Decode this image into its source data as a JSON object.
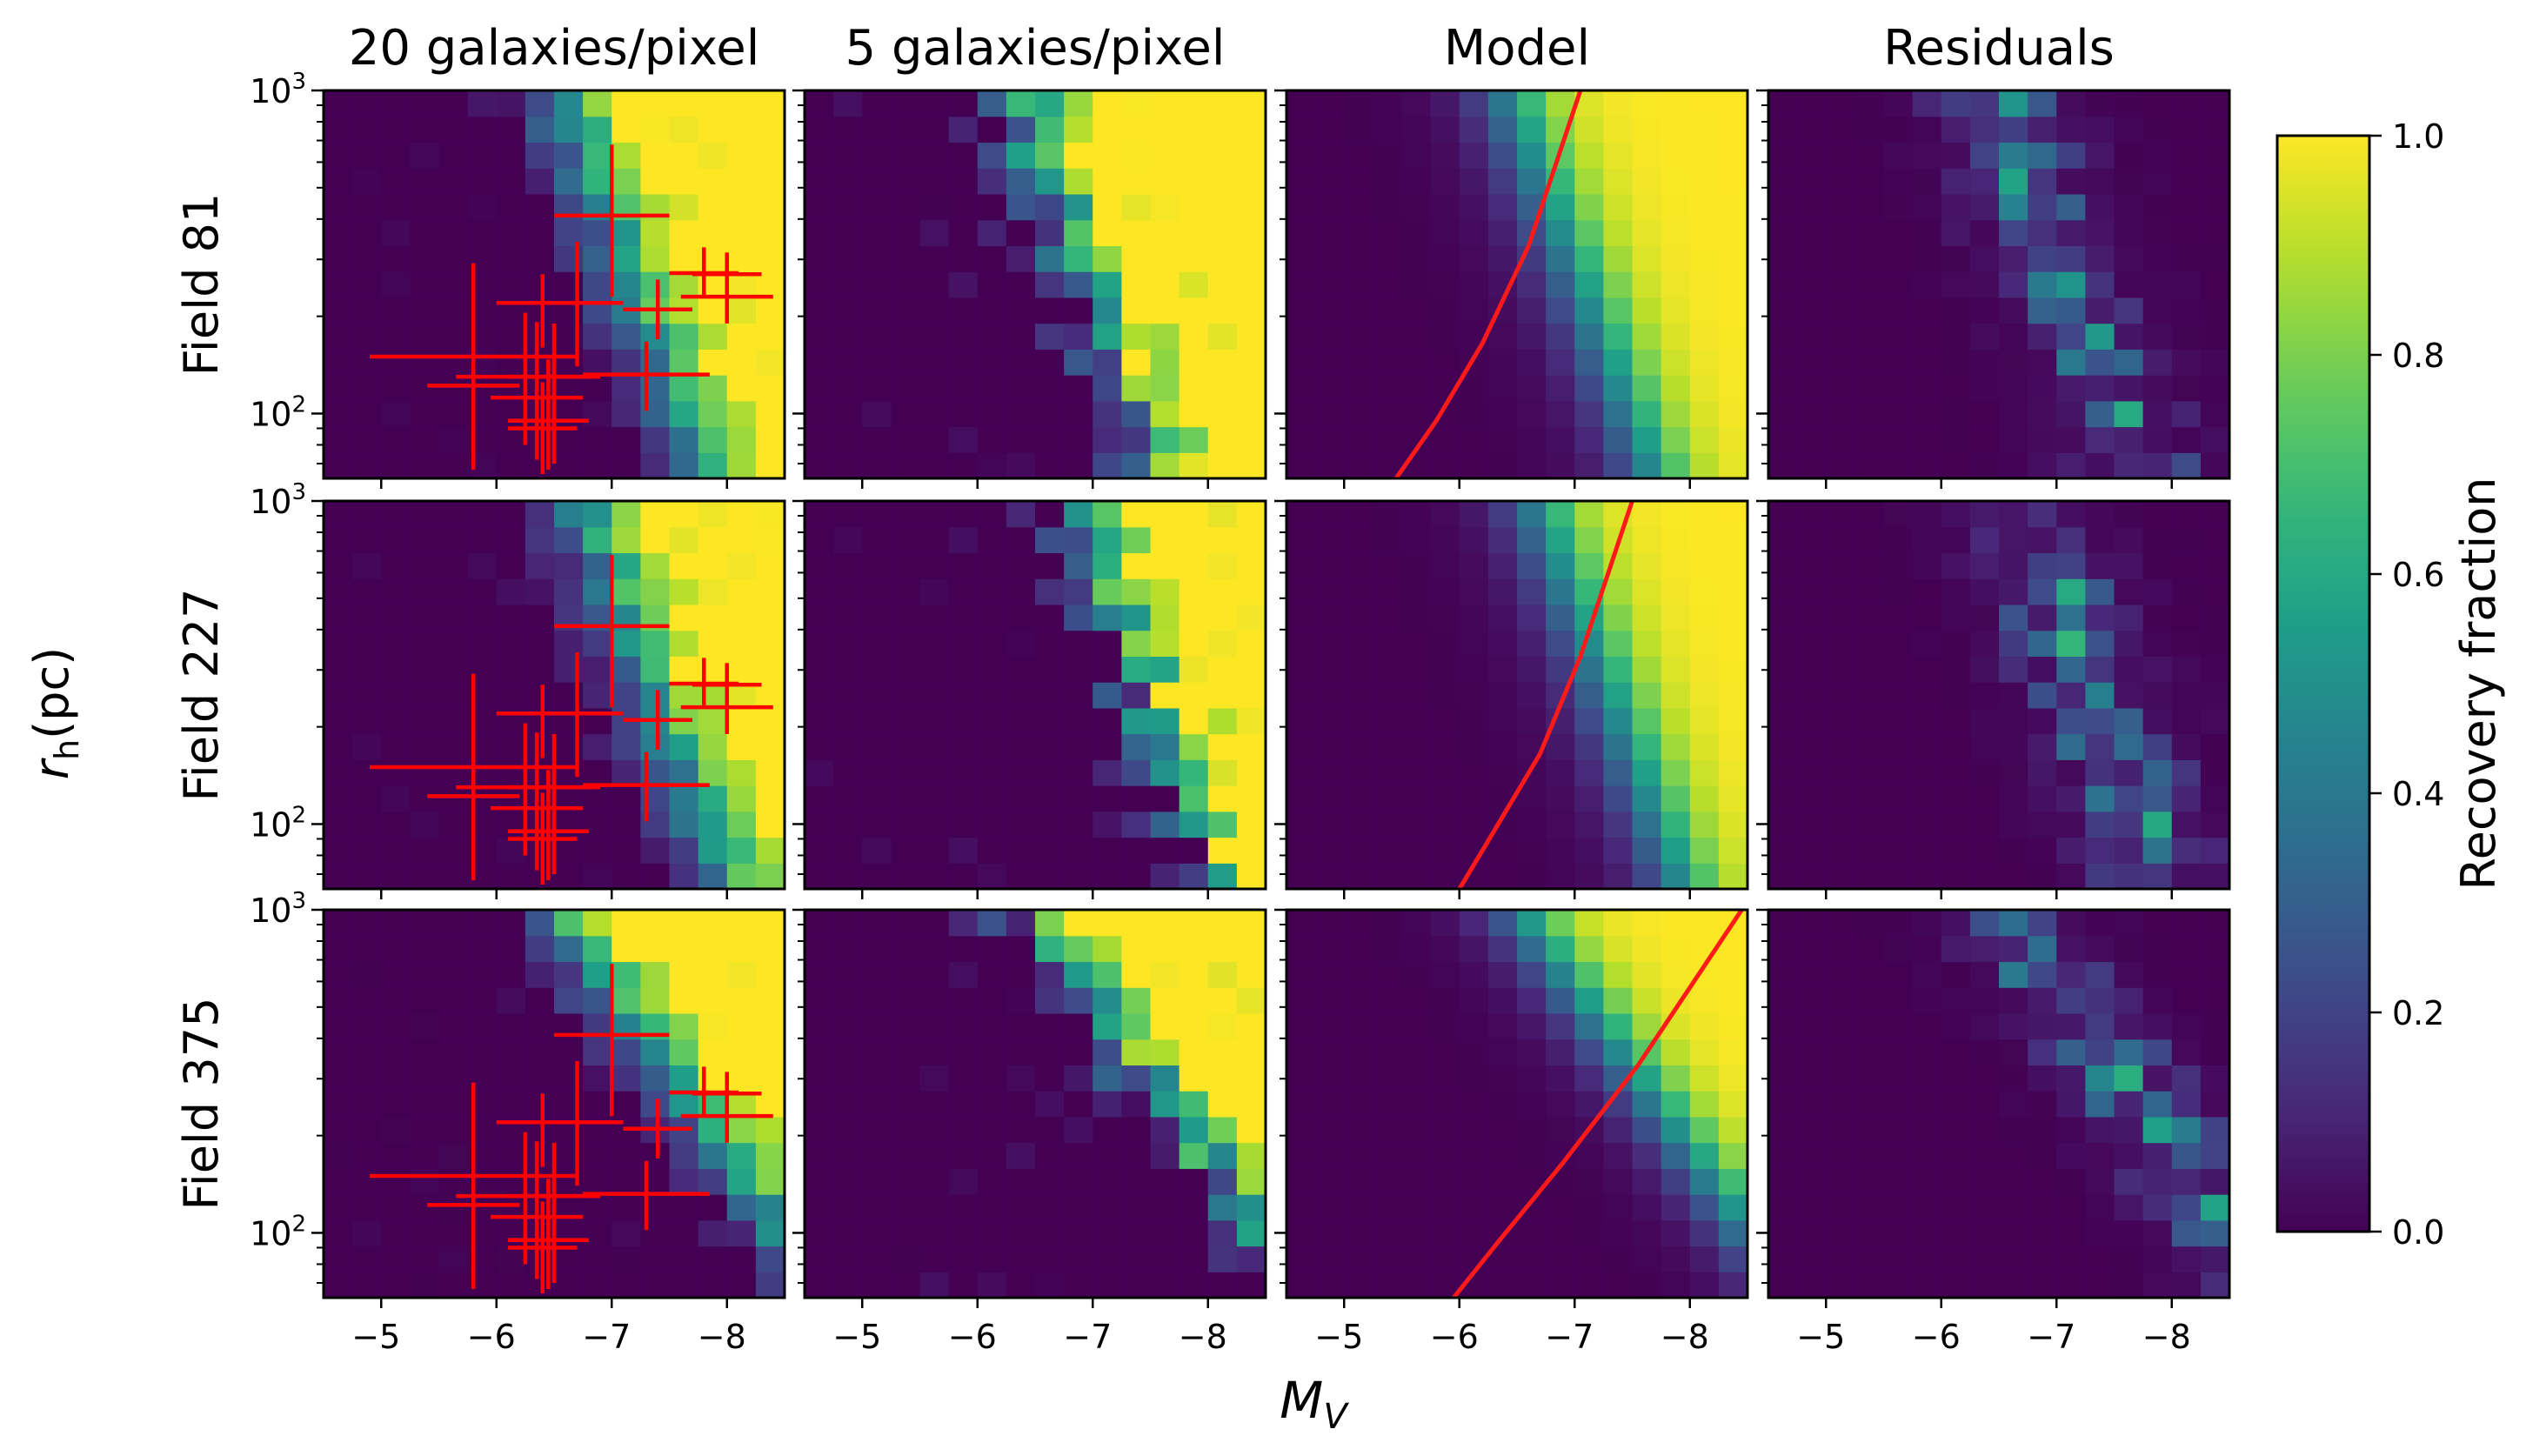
{
  "chart_data": {
    "type": "heatmap",
    "layout": "3x4 grid of heatmaps with shared axes and one colorbar",
    "column_titles": [
      "20 galaxies/pixel",
      "5 galaxies/pixel",
      "Model",
      "Residuals"
    ],
    "row_labels": [
      "Field 81",
      "Field 227",
      "Field 375"
    ],
    "xlabel": "M_V",
    "ylabel": "r_h(pc)",
    "xlim": [
      -4.5,
      -8.5
    ],
    "ylim": [
      63,
      1000
    ],
    "yscale": "log",
    "x_ticks": [
      -5,
      -6,
      -7,
      -8
    ],
    "x_tick_labels": [
      "−5",
      "−6",
      "−7",
      "−8"
    ],
    "y_tick_labels": [
      {
        "base": "10",
        "exp": "2"
      },
      {
        "base": "10",
        "exp": "3"
      }
    ],
    "colorbar": {
      "label": "Recovery fraction",
      "range": [
        0,
        1
      ],
      "ticks": [
        0.0,
        0.2,
        0.4,
        0.6,
        0.8,
        1.0
      ],
      "tick_labels": [
        "0.0",
        "0.2",
        "0.4",
        "0.6",
        "0.8",
        "1.0"
      ],
      "colormap": "viridis"
    },
    "model_curve": {
      "name": "50% completeness boundary",
      "fields": [
        {
          "field": "Field 81",
          "x": [
            -5.45,
            -5.8,
            -6.2,
            -6.6,
            -7.05
          ],
          "y": [
            63,
            95,
            165,
            330,
            1000
          ]
        },
        {
          "field": "Field 227",
          "x": [
            -6.0,
            -6.3,
            -6.7,
            -7.05,
            -7.5
          ],
          "y": [
            63,
            95,
            165,
            330,
            1000
          ]
        },
        {
          "field": "Field 375",
          "x": [
            -5.95,
            -6.35,
            -6.9,
            -7.55,
            -8.45
          ],
          "y": [
            63,
            95,
            165,
            330,
            1000
          ]
        }
      ]
    },
    "observed_galaxies": {
      "color": "#ff0000",
      "points": [
        {
          "x": -5.8,
          "y": 150,
          "xerr": 0.9,
          "yerr": [
            60,
            110
          ]
        },
        {
          "x": -5.8,
          "y": 122,
          "xerr": 0.4,
          "yerr": [
            55,
            170
          ]
        },
        {
          "x": -6.25,
          "y": 130,
          "xerr": 0.6,
          "yerr": [
            50,
            75
          ]
        },
        {
          "x": -6.35,
          "y": 112,
          "xerr": 0.4,
          "yerr": [
            40,
            80
          ]
        },
        {
          "x": -6.45,
          "y": 95,
          "xerr": 0.35,
          "yerr": [
            28,
            52
          ]
        },
        {
          "x": -6.5,
          "y": 130,
          "xerr": 0.4,
          "yerr": [
            60,
            60
          ]
        },
        {
          "x": -6.4,
          "y": 90,
          "xerr": 0.3,
          "yerr": [
            25,
            35
          ]
        },
        {
          "x": -6.4,
          "y": 220,
          "xerr": 0.4,
          "yerr": [
            60,
            50
          ]
        },
        {
          "x": -6.7,
          "y": 220,
          "xerr": 0.4,
          "yerr": [
            80,
            120
          ]
        },
        {
          "x": -7.0,
          "y": 410,
          "xerr": 0.5,
          "yerr": [
            180,
            270
          ]
        },
        {
          "x": -7.3,
          "y": 132,
          "xerr": 0.55,
          "yerr": [
            30,
            35
          ]
        },
        {
          "x": -7.4,
          "y": 210,
          "xerr": 0.3,
          "yerr": [
            40,
            50
          ]
        },
        {
          "x": -7.8,
          "y": 272,
          "xerr": 0.3,
          "yerr": [
            40,
            55
          ]
        },
        {
          "x": -8.0,
          "y": 270,
          "xerr": 0.3,
          "yerr": [
            35,
            45
          ]
        },
        {
          "x": -8.0,
          "y": 230,
          "xerr": 0.4,
          "yerr": [
            40,
            60
          ]
        }
      ]
    },
    "grid": {
      "nx": 16,
      "ny": 15,
      "note": "Cell values are recovery fractions 0-1; x bins from -4.5 to -8.5, log-spaced y bins from 63 to 1000 pc"
    },
    "panels": [
      {
        "field": "Field 81",
        "column": "20 galaxies/pixel",
        "center": -6.6,
        "slope": 0.85,
        "width": 0.22,
        "noise": 0.12,
        "seed": 11
      },
      {
        "field": "Field 81",
        "column": "5 galaxies/pixel",
        "center": -6.4,
        "slope": 0.85,
        "width": 0.18,
        "noise": 0.3,
        "seed": 12
      },
      {
        "field": "Field 81",
        "column": "Model",
        "center": -6.5,
        "slope": 0.85,
        "width": 0.22,
        "noise": 0,
        "seed": 13
      },
      {
        "field": "Field 81",
        "column": "Residuals",
        "center": -6.5,
        "slope": 0.85,
        "width": 0.2,
        "noise": 0.1,
        "seed": 14,
        "residual": true
      },
      {
        "field": "Field 227",
        "column": "20 galaxies/pixel",
        "center": -6.8,
        "slope": 0.85,
        "width": 0.22,
        "noise": 0.12,
        "seed": 21
      },
      {
        "field": "Field 227",
        "column": "5 galaxies/pixel",
        "center": -6.9,
        "slope": 0.85,
        "width": 0.18,
        "noise": 0.3,
        "seed": 22
      },
      {
        "field": "Field 227",
        "column": "Model",
        "center": -6.75,
        "slope": 0.85,
        "width": 0.22,
        "noise": 0,
        "seed": 23
      },
      {
        "field": "Field 227",
        "column": "Residuals",
        "center": -6.75,
        "slope": 0.85,
        "width": 0.2,
        "noise": 0.1,
        "seed": 24,
        "residual": true
      },
      {
        "field": "Field 375",
        "column": "20 galaxies/pixel",
        "center": -7.05,
        "slope": 1.6,
        "width": 0.22,
        "noise": 0.12,
        "seed": 31
      },
      {
        "field": "Field 375",
        "column": "5 galaxies/pixel",
        "center": -7.0,
        "slope": 1.6,
        "width": 0.18,
        "noise": 0.3,
        "seed": 32
      },
      {
        "field": "Field 375",
        "column": "Model",
        "center": -7.1,
        "slope": 1.6,
        "width": 0.22,
        "noise": 0,
        "seed": 33
      },
      {
        "field": "Field 375",
        "column": "Residuals",
        "center": -7.1,
        "slope": 1.6,
        "width": 0.2,
        "noise": 0.1,
        "seed": 34,
        "residual": true
      }
    ]
  }
}
